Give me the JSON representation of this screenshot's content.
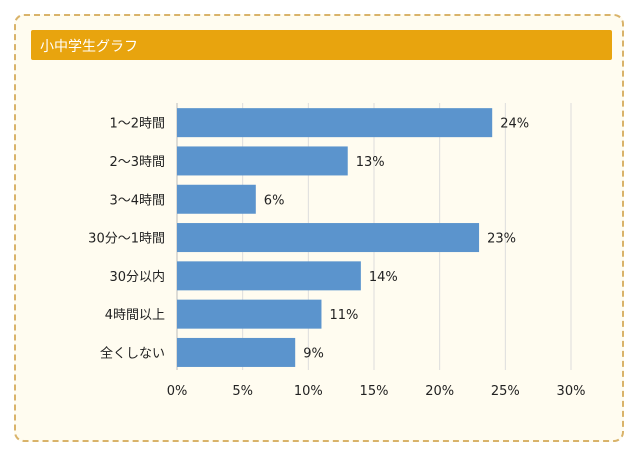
{
  "header": {
    "title": "小中学生グラフ"
  },
  "chart_data": {
    "type": "bar",
    "orientation": "horizontal",
    "title": "小中学生グラフ",
    "categories": [
      "1～2時間",
      "2～3時間",
      "3～4時間",
      "30分～1時間",
      "30分以内",
      "4時間以上",
      "全くしない"
    ],
    "values": [
      24,
      13,
      6,
      23,
      14,
      11,
      9
    ],
    "data_labels": [
      "24%",
      "13%",
      "6%",
      "23%",
      "14%",
      "11%",
      "9%"
    ],
    "xlim": [
      0,
      30
    ],
    "xticks": [
      0,
      5,
      10,
      15,
      20,
      25,
      30
    ],
    "xtick_labels": [
      "0%",
      "5%",
      "10%",
      "15%",
      "20%",
      "25%",
      "30%"
    ],
    "grid": true,
    "bar_color": "#5b94cd",
    "header_color": "#e8a40e"
  }
}
